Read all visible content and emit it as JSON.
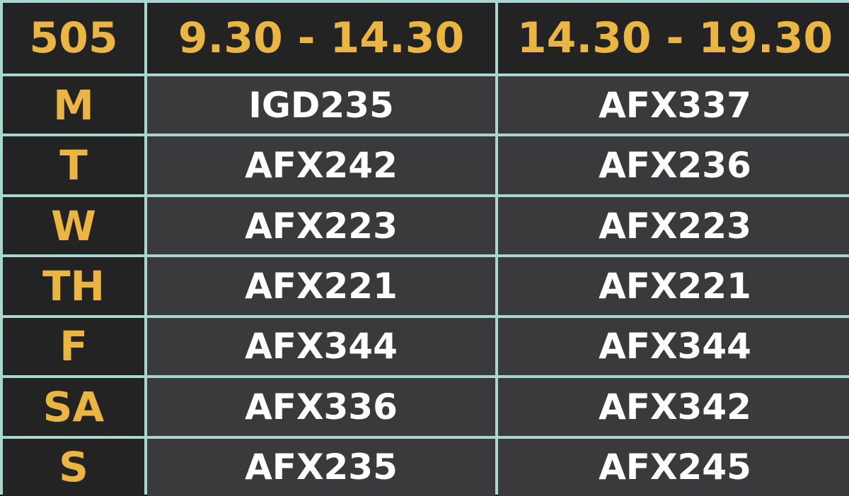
{
  "schedule": {
    "room": "505",
    "slots": [
      "9.30 - 14.30",
      "14.30 - 19.30"
    ],
    "rows": [
      {
        "day": "M",
        "morning": "IGD235",
        "evening": "AFX337"
      },
      {
        "day": "T",
        "morning": "AFX242",
        "evening": "AFX236"
      },
      {
        "day": "W",
        "morning": "AFX223",
        "evening": "AFX223"
      },
      {
        "day": "TH",
        "morning": "AFX221",
        "evening": "AFX221"
      },
      {
        "day": "F",
        "morning": "AFX344",
        "evening": "AFX344"
      },
      {
        "day": "SA",
        "morning": "AFX336",
        "evening": "AFX342"
      },
      {
        "day": "S",
        "morning": "AFX235",
        "evening": "AFX245"
      }
    ]
  },
  "colors": {
    "accent": "#eab541",
    "header_bg": "#232323",
    "cell_bg": "#3a3a3c",
    "grid_line": "#a9d6cf",
    "text": "#ffffff"
  }
}
